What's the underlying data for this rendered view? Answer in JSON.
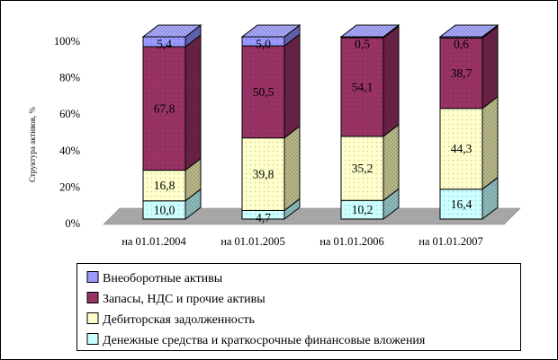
{
  "chart_data": {
    "type": "bar",
    "stacked": true,
    "style": "3d-column",
    "title": "",
    "xlabel": "",
    "ylabel": "Структура активов, %",
    "ylim": [
      0,
      100
    ],
    "yticks": [
      "0%",
      "20%",
      "40%",
      "60%",
      "80%",
      "100%"
    ],
    "ytick_values": [
      0,
      20,
      40,
      60,
      80,
      100
    ],
    "grid": false,
    "legend_position": "bottom-box",
    "background": "#FFFFFF",
    "floor_color": "#A6A6A6",
    "categories": [
      "на 01.01.2004",
      "на 01.01.2005",
      "на 01.01.2006",
      "на 01.01.2007"
    ],
    "series": [
      {
        "name": "Денежные средства и краткосрочные финансовые вложения",
        "values": [
          10.0,
          4.7,
          10.2,
          16.4
        ],
        "labels": [
          "10,0",
          "4,7",
          "10,2",
          "16,4"
        ],
        "color": "#CCFFFF",
        "side_color": "#8FBFBF",
        "top_color": "#B8E6E6"
      },
      {
        "name": "Дебиторская задолженность",
        "values": [
          16.8,
          39.8,
          35.2,
          44.3
        ],
        "labels": [
          "16,8",
          "39,8",
          "35,2",
          "44,3"
        ],
        "color": "#FFFFCC",
        "side_color": "#BCBC8A",
        "top_color": "#E6E6B8"
      },
      {
        "name": "Запасы, НДС и прочие активы",
        "values": [
          67.8,
          50.5,
          54.1,
          38.7
        ],
        "labels": [
          "67,8",
          "50,5",
          "54,1",
          "38,7"
        ],
        "color": "#993366",
        "side_color": "#6E2449",
        "top_color": "#AD3A74"
      },
      {
        "name": "Внеоборотные активы",
        "values": [
          5.4,
          5.0,
          0.5,
          0.6
        ],
        "labels": [
          "5,4",
          "5,0",
          "0,5",
          "0,6"
        ],
        "color": "#9999FF",
        "side_color": "#6666B8",
        "top_color": "#AAAAFF"
      }
    ],
    "legend_order": [
      3,
      2,
      1,
      0
    ]
  }
}
